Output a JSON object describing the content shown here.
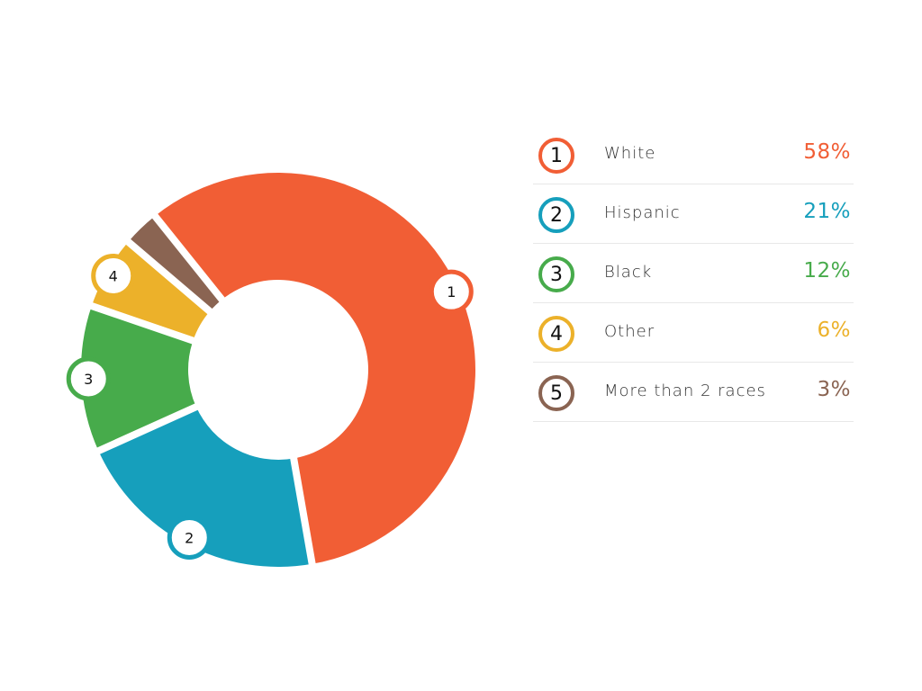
{
  "chart_data": {
    "type": "pie",
    "donut": true,
    "categories": [
      "White",
      "Hispanic",
      "Black",
      "Other",
      "More than 2 races"
    ],
    "badges": [
      "1",
      "2",
      "3",
      "4",
      "5"
    ],
    "values": [
      58,
      21,
      12,
      6,
      3
    ],
    "value_labels": [
      "58%",
      "21%",
      "12%",
      "6%",
      "3%"
    ],
    "colors": [
      "#f15e35",
      "#169fbc",
      "#47ab4b",
      "#ecb12a",
      "#8a6452"
    ],
    "legend_placement": "right"
  }
}
